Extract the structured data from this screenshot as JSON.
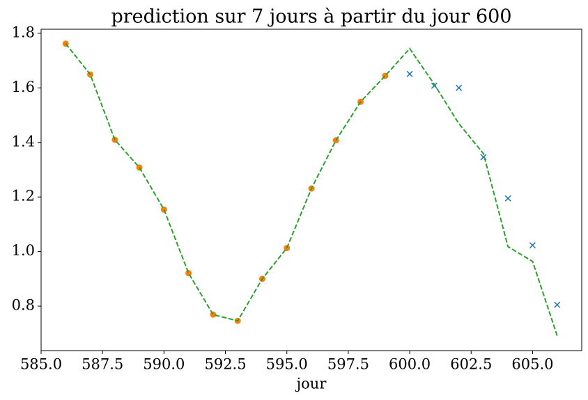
{
  "chart_data": {
    "type": "line",
    "title": "prediction sur 7 jours à partir du jour 600",
    "x_label": "jour",
    "xlim": [
      585,
      607
    ],
    "xticks": [
      {
        "value": 585,
        "label": "585.0"
      },
      {
        "value": 587.5,
        "label": "587.5"
      },
      {
        "value": 590,
        "label": "590.0"
      },
      {
        "value": 592.5,
        "label": "592.5"
      },
      {
        "value": 595,
        "label": "595.0"
      },
      {
        "value": 597.5,
        "label": "597.5"
      },
      {
        "value": 600,
        "label": "600.0"
      },
      {
        "value": 602.5,
        "label": "602.5"
      },
      {
        "value": 605,
        "label": "605.0"
      }
    ],
    "ylim": [
      0.637,
      1.815
    ],
    "yticks": [
      0.8,
      {
        "value": 1.0,
        "label": "1.0"
      },
      1.2,
      1.4,
      1.6,
      1.8
    ],
    "series": [
      {
        "color": "#2ca02c",
        "marker": "dashed-line",
        "x": [
          586,
          587,
          588,
          589,
          590,
          591,
          592,
          593,
          594,
          595,
          596,
          597,
          598,
          599,
          600,
          601,
          602,
          603,
          604,
          605,
          606
        ],
        "values": [
          1.762,
          1.649,
          1.41,
          1.308,
          1.154,
          0.921,
          0.769,
          0.746,
          0.9,
          1.013,
          1.231,
          1.408,
          1.549,
          1.644,
          1.744,
          1.613,
          1.469,
          1.359,
          1.018,
          0.964,
          0.692
        ]
      },
      {
        "color": "#ff7f0e",
        "marker": "circle",
        "x": [
          586,
          587,
          588,
          589,
          590,
          591,
          592,
          593,
          594,
          595,
          596,
          597,
          598,
          599
        ],
        "values": [
          1.762,
          1.649,
          1.41,
          1.308,
          1.154,
          0.921,
          0.769,
          0.746,
          0.9,
          1.013,
          1.231,
          1.408,
          1.549,
          1.644
        ]
      },
      {
        "color": "#1f77b4",
        "marker": "cross",
        "x": [
          600,
          601,
          602,
          603,
          604,
          605,
          606
        ],
        "values": [
          1.651,
          1.608,
          1.6,
          1.346,
          1.195,
          1.023,
          0.805
        ]
      }
    ]
  }
}
